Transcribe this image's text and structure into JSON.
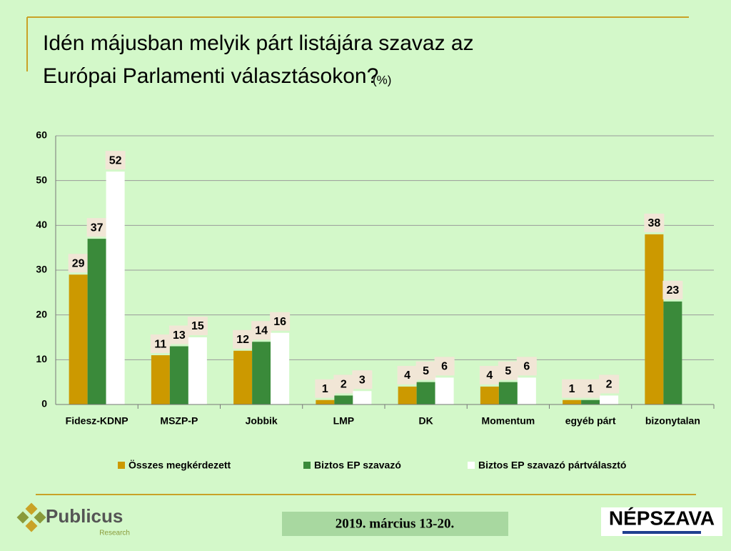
{
  "chart_data": {
    "type": "bar",
    "title": "Idén májusban melyik párt listájára szavaz az Európai Parlamenti választásokon?",
    "title_unit": "(%)",
    "categories": [
      "Fidesz-KDNP",
      "MSZP-P",
      "Jobbik",
      "LMP",
      "DK",
      "Momentum",
      "egyéb párt",
      "bizonytalan"
    ],
    "series": [
      {
        "name": "Összes megkérdezett",
        "color": "#cc9900",
        "values": [
          29,
          11,
          12,
          1,
          4,
          4,
          1,
          38
        ]
      },
      {
        "name": "Biztos EP szavazó",
        "color": "#3a8a3a",
        "values": [
          37,
          13,
          14,
          2,
          5,
          5,
          1,
          23
        ]
      },
      {
        "name": "Biztos EP szavazó pártválasztó",
        "color": "#ffffff",
        "values": [
          52,
          15,
          16,
          3,
          6,
          6,
          2,
          null
        ]
      }
    ],
    "ylim": [
      0,
      60
    ],
    "yticks": [
      0,
      10,
      20,
      30,
      40,
      50,
      60
    ],
    "grid": true,
    "legend": "bottom"
  },
  "footer": {
    "brand": "Publicus",
    "brand_sub": "Research",
    "date": "2019. március 13-20.",
    "publisher": "NÉPSZAVA"
  }
}
